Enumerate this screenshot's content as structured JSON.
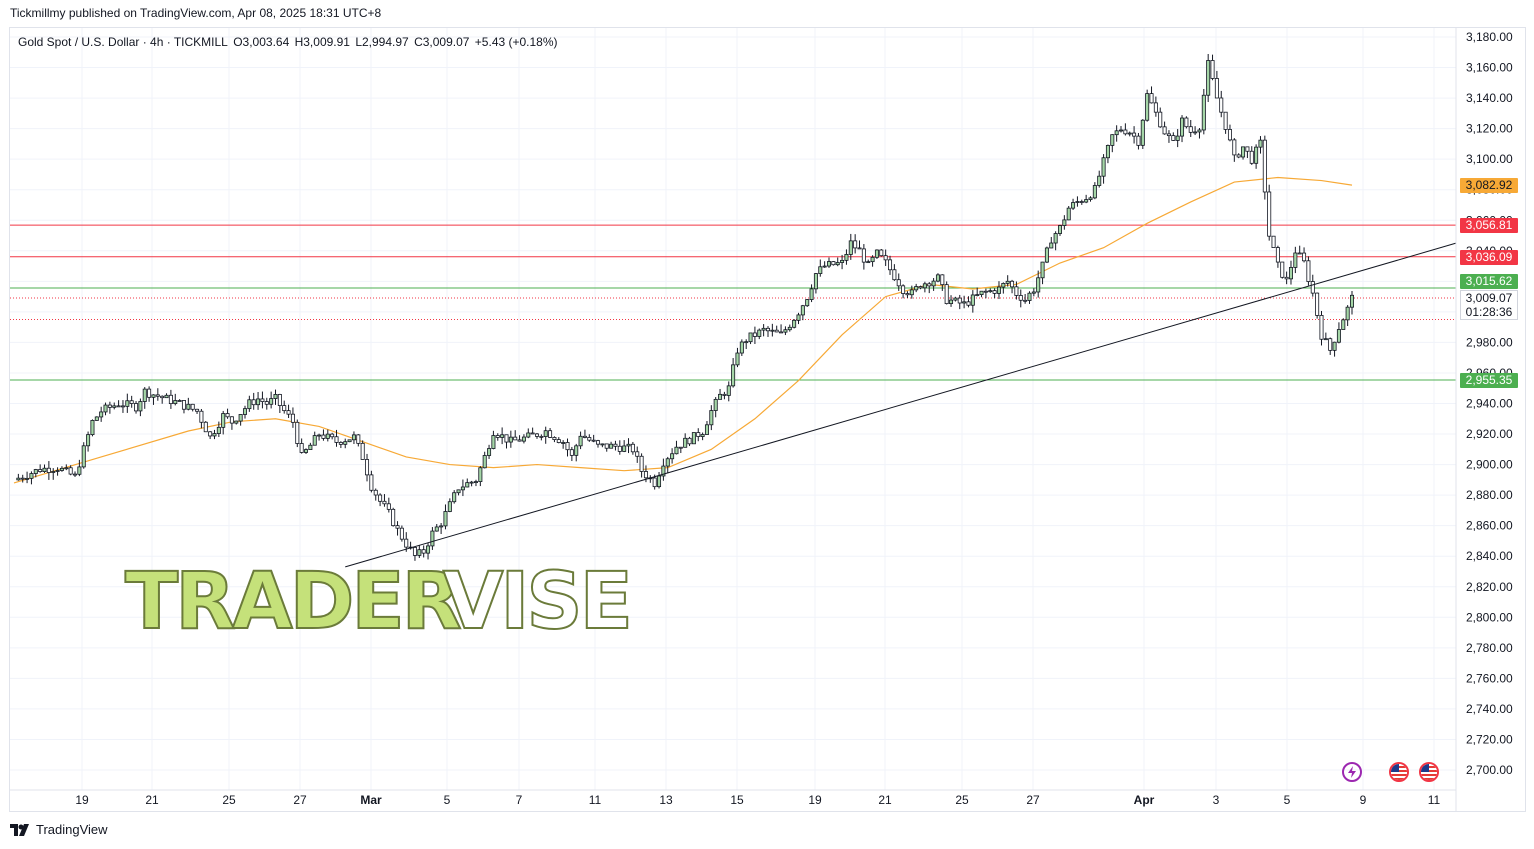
{
  "header": {
    "publish_line": "Tickmillmy published on TradingView.com, Apr 08, 2025 18:31 UTC+8"
  },
  "legend": {
    "symbol": "Gold Spot / U.S. Dollar · 4h · TICKMILL",
    "open": "O3,003.64",
    "high": "H3,009.91",
    "low": "L2,994.97",
    "close": "C3,009.07",
    "change": "+5.43 (+0.18%)"
  },
  "watermark": {
    "part1": "TRADER",
    "part2": "VISE"
  },
  "price_labels": {
    "ma": "3,082.92",
    "r1": "3,056.81",
    "r2": "3,036.09",
    "g1": "3,015.62",
    "current": "3,009.07",
    "countdown": "01:28:36",
    "g2": "2,955.35"
  },
  "footer": {
    "brand": "TradingView"
  },
  "colors": {
    "bull": "#a5d6a7",
    "bear": "#ffffff",
    "wick": "#131722",
    "ma": "#f7a936",
    "red_level": "#f23645",
    "green_level": "#4caf50",
    "trend": "#131722",
    "watermark_fill": "#c5e17a",
    "watermark_stroke": "#6b7b3a"
  },
  "icons": [
    "lightning-icon",
    "us-flag-icon",
    "us-flag-icon"
  ],
  "chart_data": {
    "type": "candlestick",
    "ylim": [
      2690,
      3190
    ],
    "y_ticks": [
      3180,
      3160,
      3140,
      3120,
      3100,
      3080,
      3060,
      3040,
      3020,
      3000,
      2980,
      2960,
      2940,
      2920,
      2900,
      2880,
      2860,
      2840,
      2820,
      2800,
      2780,
      2760,
      2740,
      2720,
      2700
    ],
    "y_tick_labels": [
      "3,180.00",
      "3,160.00",
      "3,140.00",
      "3,120.00",
      "3,100.00",
      "3,080.00",
      "3,060.00",
      "3,040.00",
      "3,020.00",
      "3,000.00",
      "2,980.00",
      "2,960.00",
      "2,940.00",
      "2,920.00",
      "2,900.00",
      "2,880.00",
      "2,860.00",
      "2,840.00",
      "2,820.00",
      "2,800.00",
      "2,780.00",
      "2,760.00",
      "2,740.00",
      "2,720.00",
      "2,700.00"
    ],
    "x_labels": [
      "19",
      "21",
      "25",
      "27",
      "Mar",
      "5",
      "7",
      "11",
      "13",
      "15",
      "19",
      "21",
      "25",
      "27",
      "Apr",
      "3",
      "5",
      "9",
      "11"
    ],
    "x_label_bold": [
      false,
      false,
      false,
      false,
      true,
      false,
      false,
      false,
      false,
      false,
      false,
      false,
      false,
      false,
      true,
      false,
      false,
      false,
      false
    ],
    "close_path": [
      [
        0,
        2890
      ],
      [
        6,
        2897
      ],
      [
        10,
        2898
      ],
      [
        14,
        2892
      ],
      [
        16,
        2910
      ],
      [
        18,
        2928
      ],
      [
        20,
        2935
      ],
      [
        24,
        2940
      ],
      [
        28,
        2938
      ],
      [
        30,
        2948
      ],
      [
        34,
        2944
      ],
      [
        38,
        2940
      ],
      [
        42,
        2935
      ],
      [
        45,
        2918
      ],
      [
        48,
        2932
      ],
      [
        50,
        2928
      ],
      [
        54,
        2940
      ],
      [
        56,
        2943
      ],
      [
        58,
        2940
      ],
      [
        60,
        2943
      ],
      [
        62,
        2935
      ],
      [
        64,
        2928
      ],
      [
        66,
        2905
      ],
      [
        70,
        2920
      ],
      [
        74,
        2915
      ],
      [
        78,
        2918
      ],
      [
        80,
        2905
      ],
      [
        82,
        2886
      ],
      [
        84,
        2876
      ],
      [
        86,
        2868
      ],
      [
        88,
        2857
      ],
      [
        90,
        2848
      ],
      [
        92,
        2840
      ],
      [
        94,
        2843
      ],
      [
        96,
        2855
      ],
      [
        98,
        2862
      ],
      [
        102,
        2885
      ],
      [
        106,
        2890
      ],
      [
        108,
        2905
      ],
      [
        110,
        2922
      ],
      [
        114,
        2915
      ],
      [
        118,
        2918
      ],
      [
        122,
        2922
      ],
      [
        126,
        2915
      ],
      [
        128,
        2905
      ],
      [
        130,
        2920
      ],
      [
        134,
        2912
      ],
      [
        138,
        2912
      ],
      [
        142,
        2910
      ],
      [
        144,
        2896
      ],
      [
        147,
        2888
      ],
      [
        149,
        2902
      ],
      [
        152,
        2912
      ],
      [
        156,
        2918
      ],
      [
        158,
        2922
      ],
      [
        160,
        2935
      ],
      [
        162,
        2945
      ],
      [
        164,
        2950
      ],
      [
        166,
        2975
      ],
      [
        168,
        2982
      ],
      [
        172,
        2988
      ],
      [
        176,
        2985
      ],
      [
        178,
        2992
      ],
      [
        180,
        3000
      ],
      [
        182,
        3010
      ],
      [
        184,
        3025
      ],
      [
        186,
        3030
      ],
      [
        190,
        3032
      ],
      [
        192,
        3045
      ],
      [
        194,
        3040
      ],
      [
        196,
        3030
      ],
      [
        198,
        3038
      ],
      [
        200,
        3032
      ],
      [
        204,
        3015
      ],
      [
        206,
        3012
      ],
      [
        208,
        3018
      ],
      [
        212,
        3022
      ],
      [
        214,
        3008
      ],
      [
        218,
        3005
      ],
      [
        222,
        3012
      ],
      [
        226,
        3015
      ],
      [
        228,
        3020
      ],
      [
        230,
        3012
      ],
      [
        232,
        3008
      ],
      [
        234,
        3015
      ],
      [
        236,
        3030
      ],
      [
        238,
        3048
      ],
      [
        240,
        3055
      ],
      [
        242,
        3068
      ],
      [
        244,
        3072
      ],
      [
        246,
        3075
      ],
      [
        248,
        3080
      ],
      [
        250,
        3098
      ],
      [
        252,
        3115
      ],
      [
        254,
        3120
      ],
      [
        256,
        3118
      ],
      [
        258,
        3112
      ],
      [
        260,
        3142
      ],
      [
        262,
        3130
      ],
      [
        264,
        3118
      ],
      [
        266,
        3110
      ],
      [
        268,
        3125
      ],
      [
        270,
        3118
      ],
      [
        272,
        3122
      ],
      [
        274,
        3162
      ],
      [
        276,
        3140
      ],
      [
        278,
        3122
      ],
      [
        280,
        3100
      ],
      [
        282,
        3108
      ],
      [
        284,
        3100
      ],
      [
        286,
        3110
      ],
      [
        288,
        3050
      ],
      [
        290,
        3030
      ],
      [
        292,
        3020
      ],
      [
        294,
        3040
      ],
      [
        296,
        3032
      ],
      [
        298,
        3012
      ],
      [
        300,
        2985
      ],
      [
        302,
        2975
      ],
      [
        304,
        2990
      ],
      [
        306,
        3002
      ],
      [
        307,
        3009
      ]
    ],
    "ma_path": [
      [
        0,
        2888
      ],
      [
        20,
        2905
      ],
      [
        40,
        2922
      ],
      [
        50,
        2928
      ],
      [
        60,
        2930
      ],
      [
        70,
        2925
      ],
      [
        80,
        2915
      ],
      [
        90,
        2905
      ],
      [
        100,
        2900
      ],
      [
        110,
        2898
      ],
      [
        120,
        2900
      ],
      [
        130,
        2898
      ],
      [
        140,
        2896
      ],
      [
        150,
        2898
      ],
      [
        160,
        2910
      ],
      [
        170,
        2930
      ],
      [
        180,
        2955
      ],
      [
        190,
        2985
      ],
      [
        200,
        3010
      ],
      [
        210,
        3018
      ],
      [
        220,
        3015
      ],
      [
        230,
        3018
      ],
      [
        240,
        3032
      ],
      [
        250,
        3042
      ],
      [
        260,
        3058
      ],
      [
        270,
        3072
      ],
      [
        280,
        3085
      ],
      [
        290,
        3088
      ],
      [
        300,
        3086
      ],
      [
        307,
        3083
      ]
    ],
    "total_candles": 307,
    "trend_line": {
      "from": [
        76,
        2833
      ],
      "to": [
        311,
        3045
      ]
    },
    "levels": [
      {
        "name": "resistance-1",
        "value": 3056.81,
        "color": "#f23645"
      },
      {
        "name": "resistance-2",
        "value": 3036.09,
        "color": "#f23645"
      },
      {
        "name": "support-green-1",
        "value": 3015.62,
        "color": "#4caf50"
      },
      {
        "name": "support-green-2",
        "value": 2955.35,
        "color": "#4caf50"
      }
    ],
    "grid": true
  }
}
